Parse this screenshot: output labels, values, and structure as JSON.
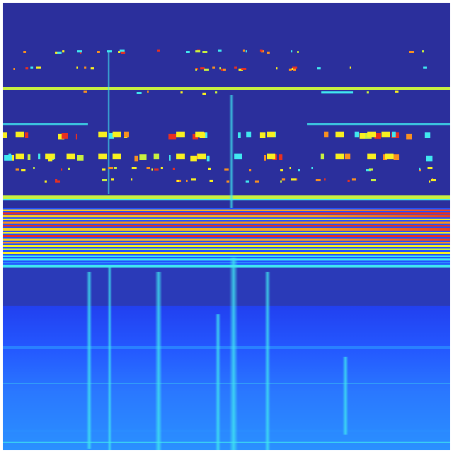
{
  "colors": {
    "background": "#2b2f9c",
    "dark_blue": "#2a2ea0",
    "mid_blue": "#2a3ab8",
    "bright_blue": "#2050ff",
    "light_blue": "#2a8cff",
    "cyan": "#40e8f0",
    "green_yellow": "#c8f040",
    "yellow": "#f8f020",
    "orange": "#f89020",
    "red": "#e83020"
  }
}
